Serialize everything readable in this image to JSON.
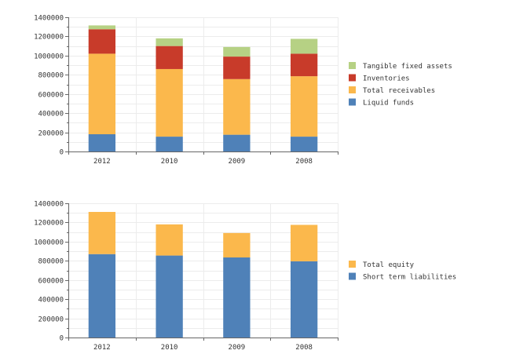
{
  "chart_data": [
    {
      "type": "bar",
      "stacked": true,
      "categories": [
        "2012",
        "2010",
        "2009",
        "2008"
      ],
      "ylim": [
        0,
        1400000
      ],
      "yticks": [
        0,
        200000,
        400000,
        600000,
        800000,
        1000000,
        1200000,
        1400000
      ],
      "ytick_labels": [
        "0",
        "200000",
        "400000",
        "600000",
        "800000",
        "1000000",
        "1200000",
        "1400000"
      ],
      "grid": true,
      "legend_position": "right",
      "series": [
        {
          "name": "Liquid funds",
          "color": "#4f81b8",
          "values": [
            180000,
            155000,
            175000,
            155000
          ]
        },
        {
          "name": "Total receivables",
          "color": "#fbb84c",
          "values": [
            840000,
            705000,
            580000,
            630000
          ]
        },
        {
          "name": "Inventories",
          "color": "#c83b2a",
          "values": [
            255000,
            240000,
            235000,
            235000
          ]
        },
        {
          "name": "Tangible fixed assets",
          "color": "#b6d184",
          "values": [
            40000,
            80000,
            100000,
            155000
          ]
        }
      ]
    },
    {
      "type": "bar",
      "stacked": true,
      "categories": [
        "2012",
        "2010",
        "2009",
        "2008"
      ],
      "ylim": [
        0,
        1400000
      ],
      "yticks": [
        0,
        200000,
        400000,
        600000,
        800000,
        1000000,
        1200000,
        1400000
      ],
      "ytick_labels": [
        "0",
        "200000",
        "400000",
        "600000",
        "800000",
        "1000000",
        "1200000",
        "1400000"
      ],
      "grid": true,
      "legend_position": "right",
      "series": [
        {
          "name": "Short term liabilities",
          "color": "#4f81b8",
          "values": [
            870000,
            855000,
            835000,
            795000
          ]
        },
        {
          "name": "Total equity",
          "color": "#fbb84c",
          "values": [
            440000,
            325000,
            255000,
            380000
          ]
        }
      ]
    }
  ]
}
